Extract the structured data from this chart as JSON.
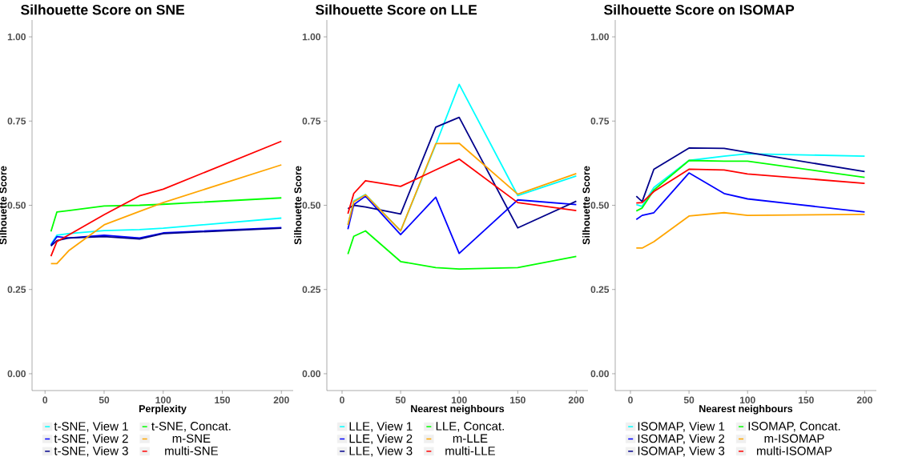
{
  "chart_data": [
    {
      "type": "line",
      "title": "Silhouette Score on SNE",
      "xlabel": "Perplexity",
      "ylabel": "Silhouette Score",
      "x": [
        5,
        10,
        20,
        50,
        80,
        100,
        200
      ],
      "xlim": [
        -11,
        210
      ],
      "ylim": [
        -0.05,
        1.05
      ],
      "xticks": [
        0,
        50,
        100,
        150,
        200
      ],
      "yticks": [
        {
          "value": 0,
          "label": "0.00"
        },
        {
          "value": 0.25,
          "label": "0.25"
        },
        {
          "value": 0.5,
          "label": "0.50"
        },
        {
          "value": 0.75,
          "label": "0.75"
        },
        {
          "value": 1,
          "label": "1.00"
        }
      ],
      "legend": "bottom",
      "series": [
        {
          "name": "t-SNE, View 1",
          "color": "#00ffff",
          "values": [
            0.384,
            0.411,
            0.416,
            0.425,
            0.428,
            0.432,
            0.462
          ]
        },
        {
          "name": "t-SNE, View 2",
          "color": "#0000ff",
          "values": [
            0.381,
            0.407,
            0.403,
            0.411,
            0.403,
            0.418,
            0.434
          ]
        },
        {
          "name": "t-SNE, View 3",
          "color": "#00008b",
          "values": [
            0.379,
            0.395,
            0.403,
            0.407,
            0.4,
            0.416,
            0.432
          ]
        },
        {
          "name": "t-SNE, Concat.",
          "color": "#00ff00",
          "values": [
            0.422,
            0.48,
            0.484,
            0.498,
            0.5,
            0.503,
            0.522
          ]
        },
        {
          "name": "m-SNE",
          "color": "#ffa500",
          "values": [
            0.327,
            0.327,
            0.365,
            0.442,
            0.482,
            0.508,
            0.62
          ]
        },
        {
          "name": "multi-SNE",
          "color": "#ff0000",
          "values": [
            0.349,
            0.392,
            0.412,
            0.472,
            0.528,
            0.548,
            0.69
          ]
        }
      ]
    },
    {
      "type": "line",
      "title": "Silhouette Score on LLE",
      "xlabel": "Nearest neighbours",
      "ylabel": "Silhouette Score",
      "x": [
        5,
        10,
        20,
        50,
        80,
        100,
        150,
        200
      ],
      "xlim": [
        -13,
        210
      ],
      "ylim": [
        -0.05,
        1.05
      ],
      "xticks": [
        0,
        50,
        100,
        150,
        200
      ],
      "yticks": [
        {
          "value": 0,
          "label": "0.00"
        },
        {
          "value": 0.25,
          "label": "0.25"
        },
        {
          "value": 0.5,
          "label": "0.50"
        },
        {
          "value": 0.75,
          "label": "0.75"
        },
        {
          "value": 1,
          "label": "1.00"
        }
      ],
      "legend": "bottom",
      "series": [
        {
          "name": "LLE, View 1",
          "color": "#00ffff",
          "values": [
            0.442,
            0.513,
            0.532,
            0.424,
            0.68,
            0.859,
            0.529,
            0.587
          ]
        },
        {
          "name": "LLE, View 2",
          "color": "#0000ff",
          "values": [
            0.429,
            0.502,
            0.527,
            0.413,
            0.524,
            0.357,
            0.516,
            0.502
          ]
        },
        {
          "name": "LLE, View 3",
          "color": "#00008b",
          "values": [
            0.49,
            0.5,
            0.495,
            0.474,
            0.732,
            0.761,
            0.433,
            0.512
          ]
        },
        {
          "name": "LLE, Concat.",
          "color": "#00ff00",
          "values": [
            0.355,
            0.408,
            0.424,
            0.333,
            0.315,
            0.311,
            0.315,
            0.348
          ]
        },
        {
          "name": "m-LLE",
          "color": "#ffa500",
          "values": [
            0.442,
            0.51,
            0.531,
            0.424,
            0.683,
            0.684,
            0.533,
            0.594
          ]
        },
        {
          "name": "multi-LLE",
          "color": "#ff0000",
          "values": [
            0.475,
            0.535,
            0.573,
            0.556,
            0.605,
            0.637,
            0.508,
            0.484
          ]
        }
      ]
    },
    {
      "type": "line",
      "title": "Silhouette Score on ISOMAP",
      "xlabel": "Nearest neighbours",
      "ylabel": "Silhouette Score",
      "x": [
        5,
        10,
        20,
        50,
        80,
        100,
        200
      ],
      "xlim": [
        -13,
        210
      ],
      "ylim": [
        -0.05,
        1.05
      ],
      "xticks": [
        0,
        50,
        100,
        150,
        200
      ],
      "yticks": [
        {
          "value": 0,
          "label": "0.00"
        },
        {
          "value": 0.25,
          "label": "0.25"
        },
        {
          "value": 0.5,
          "label": "0.50"
        },
        {
          "value": 0.75,
          "label": "0.75"
        },
        {
          "value": 1,
          "label": "1.00"
        }
      ],
      "legend": "bottom",
      "series": [
        {
          "name": "ISOMAP, View 1",
          "color": "#00ffff",
          "values": [
            0.502,
            0.497,
            0.553,
            0.633,
            0.646,
            0.653,
            0.646
          ]
        },
        {
          "name": "ISOMAP, View 2",
          "color": "#0000ff",
          "values": [
            0.458,
            0.47,
            0.478,
            0.596,
            0.535,
            0.519,
            0.48
          ]
        },
        {
          "name": "ISOMAP, View 3",
          "color": "#00008b",
          "values": [
            0.527,
            0.511,
            0.607,
            0.67,
            0.669,
            0.657,
            0.6
          ]
        },
        {
          "name": "ISOMAP, Concat.",
          "color": "#00ff00",
          "values": [
            0.483,
            0.492,
            0.545,
            0.633,
            0.631,
            0.631,
            0.583
          ]
        },
        {
          "name": "m-ISOMAP",
          "color": "#ffa500",
          "values": [
            0.373,
            0.373,
            0.392,
            0.468,
            0.478,
            0.47,
            0.473
          ]
        },
        {
          "name": "multi-ISOMAP",
          "color": "#ff0000",
          "values": [
            0.507,
            0.508,
            0.541,
            0.607,
            0.605,
            0.593,
            0.565
          ]
        }
      ]
    }
  ]
}
